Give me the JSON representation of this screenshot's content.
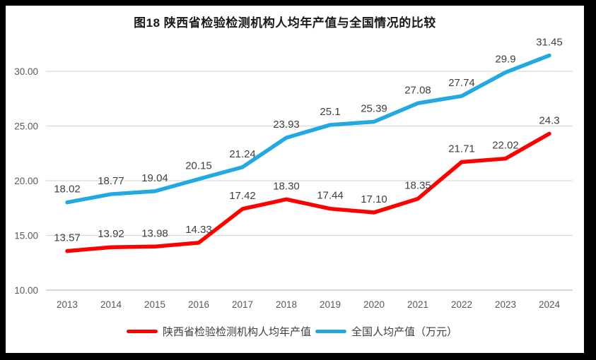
{
  "chart_data": {
    "type": "line",
    "title": "图18 陕西省检验检测机构人均年产值与全国情况的比较",
    "categories": [
      "2013",
      "2014",
      "2015",
      "2016",
      "2017",
      "2018",
      "2019",
      "2020",
      "2021",
      "2022",
      "2023",
      "2024"
    ],
    "series": [
      {
        "name": "陕西省检验检测机构人均年产值",
        "color": "#fe0000",
        "values": [
          13.57,
          13.92,
          13.98,
          14.33,
          17.42,
          18.3,
          17.44,
          17.1,
          18.35,
          21.71,
          22.02,
          24.3
        ],
        "labels": [
          "13.57",
          "13.92",
          "13.98",
          "14.33",
          "17.42",
          "18.30",
          "17.44",
          "17.10",
          "18.35",
          "21.71",
          "22.02",
          "24.3"
        ]
      },
      {
        "name": "全国人均产值（万元）",
        "color": "#23a9e1",
        "values": [
          18.02,
          18.77,
          19.04,
          20.15,
          21.24,
          23.93,
          25.1,
          25.39,
          27.08,
          27.74,
          29.9,
          31.45
        ],
        "labels": [
          "18.02",
          "18.77",
          "19.04",
          "20.15",
          "21.24",
          "23.93",
          "25.1",
          "25.39",
          "27.08",
          "27.74",
          "29.9",
          "31.45"
        ]
      }
    ],
    "xlabel": "",
    "ylabel": "",
    "ylim": [
      10,
      32.5
    ],
    "yticks": [
      {
        "value": 10,
        "label": "10.00"
      },
      {
        "value": 15,
        "label": "15.00"
      },
      {
        "value": 20,
        "label": "20.00"
      },
      {
        "value": 25,
        "label": "25.00"
      },
      {
        "value": 30,
        "label": "30.00"
      }
    ],
    "grid": true,
    "legend_position": "bottom"
  },
  "colors": {
    "grid": "#d9d9d9",
    "axis_line": "#bfbfbf",
    "tick_text": "#595959",
    "data_label": "#404040",
    "frame": "#000000",
    "background": "#ffffff"
  }
}
